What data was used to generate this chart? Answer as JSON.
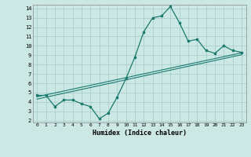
{
  "xlabel": "Humidex (Indice chaleur)",
  "ylabel": "",
  "background_color": "#cce8e5",
  "grid_color": "#aacfcc",
  "line_color": "#1a7a6e",
  "xlim": [
    -0.5,
    23.5
  ],
  "ylim": [
    1.8,
    14.4
  ],
  "xticks": [
    0,
    1,
    2,
    3,
    4,
    5,
    6,
    7,
    8,
    9,
    10,
    11,
    12,
    13,
    14,
    15,
    16,
    17,
    18,
    19,
    20,
    21,
    22,
    23
  ],
  "yticks": [
    2,
    3,
    4,
    5,
    6,
    7,
    8,
    9,
    10,
    11,
    12,
    13,
    14
  ],
  "line1_x": [
    0,
    1,
    2,
    3,
    4,
    5,
    6,
    7,
    8,
    9,
    10,
    11,
    12,
    13,
    14,
    15,
    16,
    17,
    18,
    19,
    20,
    21,
    22,
    23
  ],
  "line1_y": [
    4.7,
    4.7,
    3.5,
    4.2,
    4.2,
    3.8,
    3.5,
    2.2,
    2.8,
    4.5,
    6.5,
    8.8,
    11.5,
    13.0,
    13.2,
    14.2,
    12.5,
    10.5,
    10.7,
    9.5,
    9.2,
    10.0,
    9.5,
    9.3
  ],
  "line2_x": [
    0,
    23
  ],
  "line2_y": [
    4.55,
    9.25
  ],
  "line3_x": [
    0,
    23
  ],
  "line3_y": [
    4.3,
    9.05
  ]
}
